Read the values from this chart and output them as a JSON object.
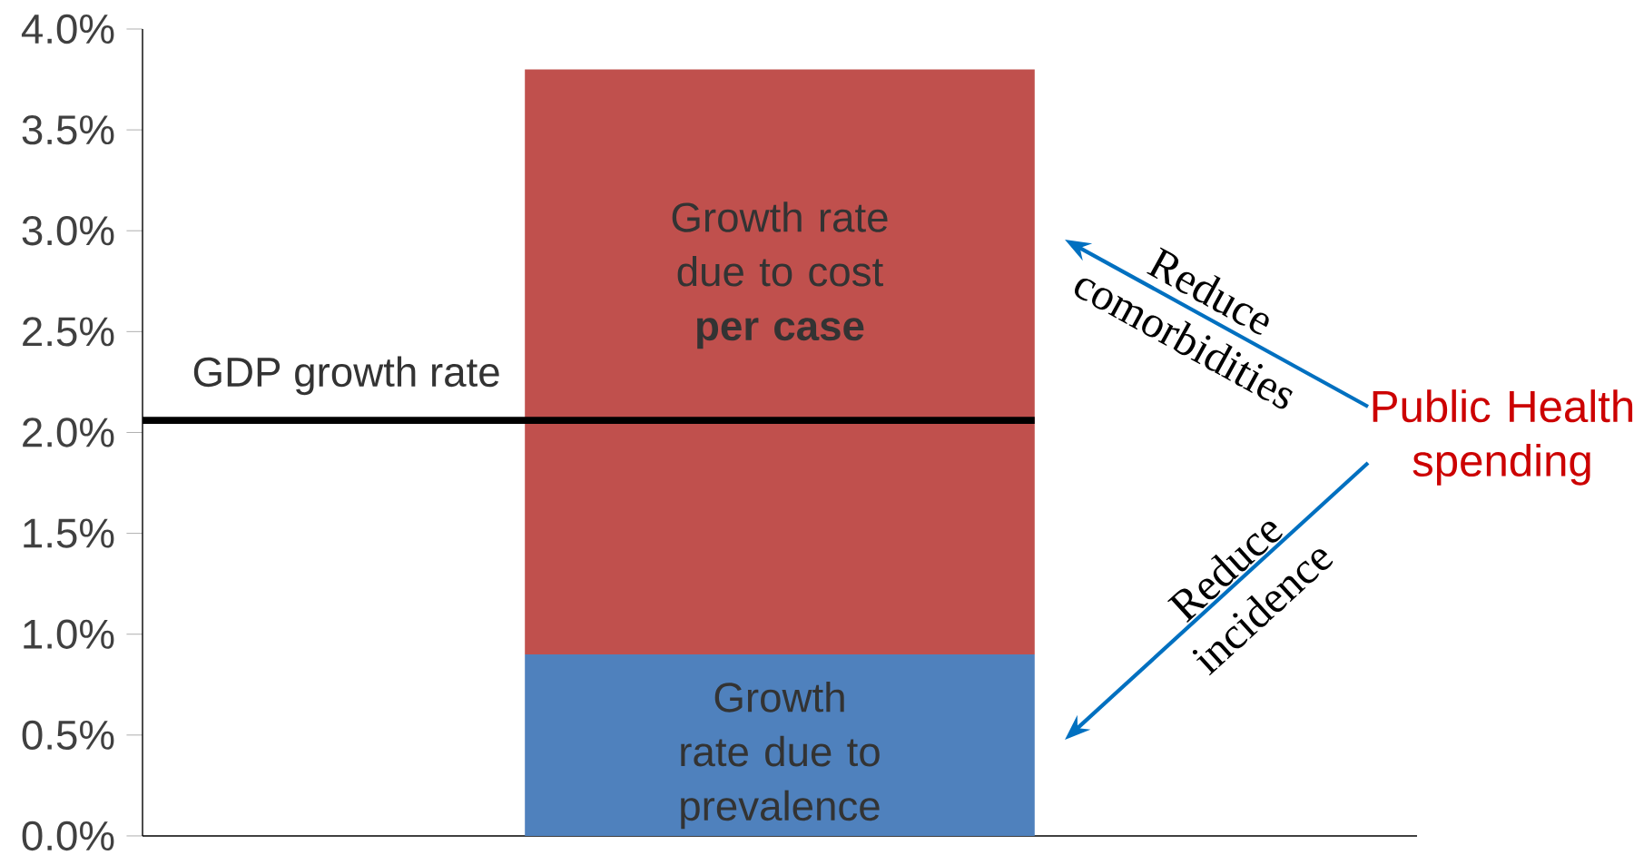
{
  "chart_data": {
    "type": "bar",
    "stacked": true,
    "categories": [
      null
    ],
    "series": [
      {
        "name": "Growth rate due to prevalence",
        "color": "#4f81bd",
        "values": [
          0.9
        ]
      },
      {
        "name": "Growth rate due to cost **per case**",
        "color": "#c0504d",
        "values": [
          2.9
        ]
      }
    ],
    "ylim": [
      0,
      4
    ],
    "yticks": [
      {
        "value": 0,
        "label": "0.0%"
      },
      {
        "value": 0.5,
        "label": "0.5%"
      },
      {
        "value": 1,
        "label": "1.0%"
      },
      {
        "value": 1.5,
        "label": "1.5%"
      },
      {
        "value": 2,
        "label": "2.0%"
      },
      {
        "value": 2.5,
        "label": "2.5%"
      },
      {
        "value": 3,
        "label": "3.0%"
      },
      {
        "value": 3.5,
        "label": "3.5%"
      },
      {
        "value": 4,
        "label": "4.0%"
      }
    ],
    "ref_lines": [
      {
        "axis": "y",
        "value": 2.06,
        "label": "GDP growth rate",
        "color": "#000000"
      }
    ],
    "annotations": [
      "Reduce comorbidities",
      "Reduce incidence",
      "Public Health spending"
    ]
  }
}
